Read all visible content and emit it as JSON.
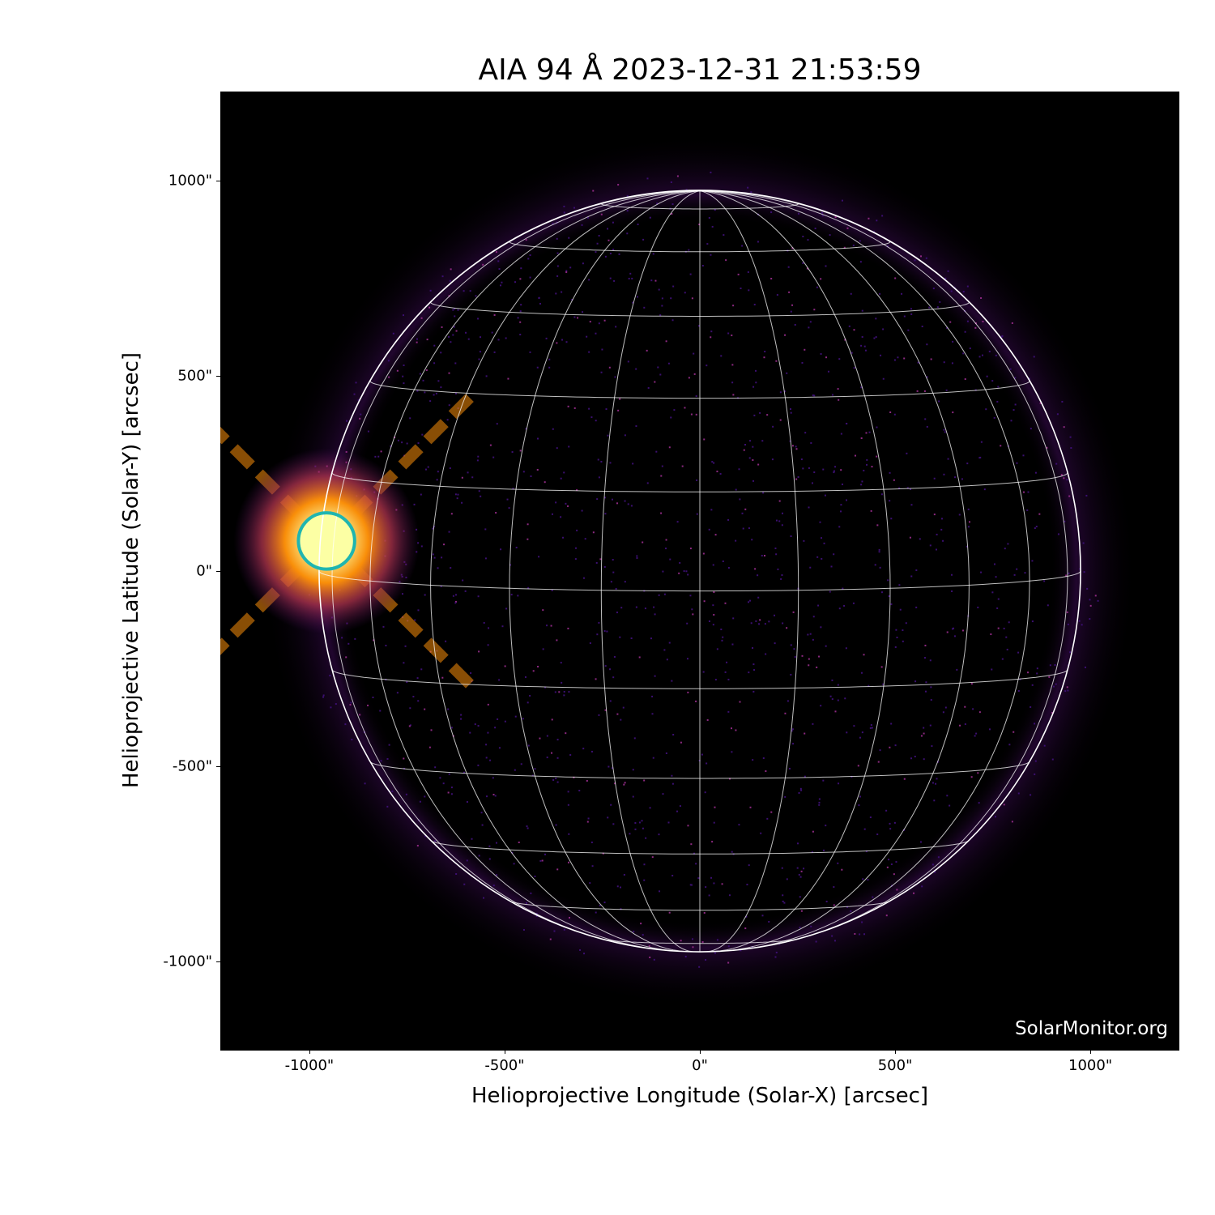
{
  "chart_data": {
    "type": "heatmap",
    "title": "AIA 94 Å 2023-12-31 21:53:59",
    "xlabel": "Helioprojective Longitude (Solar-X) [arcsec]",
    "ylabel": "Helioprojective Latitude (Solar-Y) [arcsec]",
    "xlim": [
      -1228,
      1228
    ],
    "ylim": [
      -1228,
      1228
    ],
    "xticks": [
      -1000,
      -500,
      0,
      500,
      1000
    ],
    "yticks": [
      -1000,
      -500,
      0,
      500,
      1000
    ],
    "xtick_labels": [
      "-1000\"",
      "-500\"",
      "0\"",
      "500\"",
      "1000\""
    ],
    "ytick_labels": [
      "-1000\"",
      "-500\"",
      "0\"",
      "500\"",
      "1000\""
    ],
    "solar_radius_arcsec": 975,
    "grid_spacing_deg": 15,
    "colormap": "inferno",
    "marker": {
      "shape": "circle",
      "x": -956,
      "y": 77,
      "radius": 72,
      "color": "#1fb5b0"
    },
    "watermark": "SolarMonitor.org"
  }
}
